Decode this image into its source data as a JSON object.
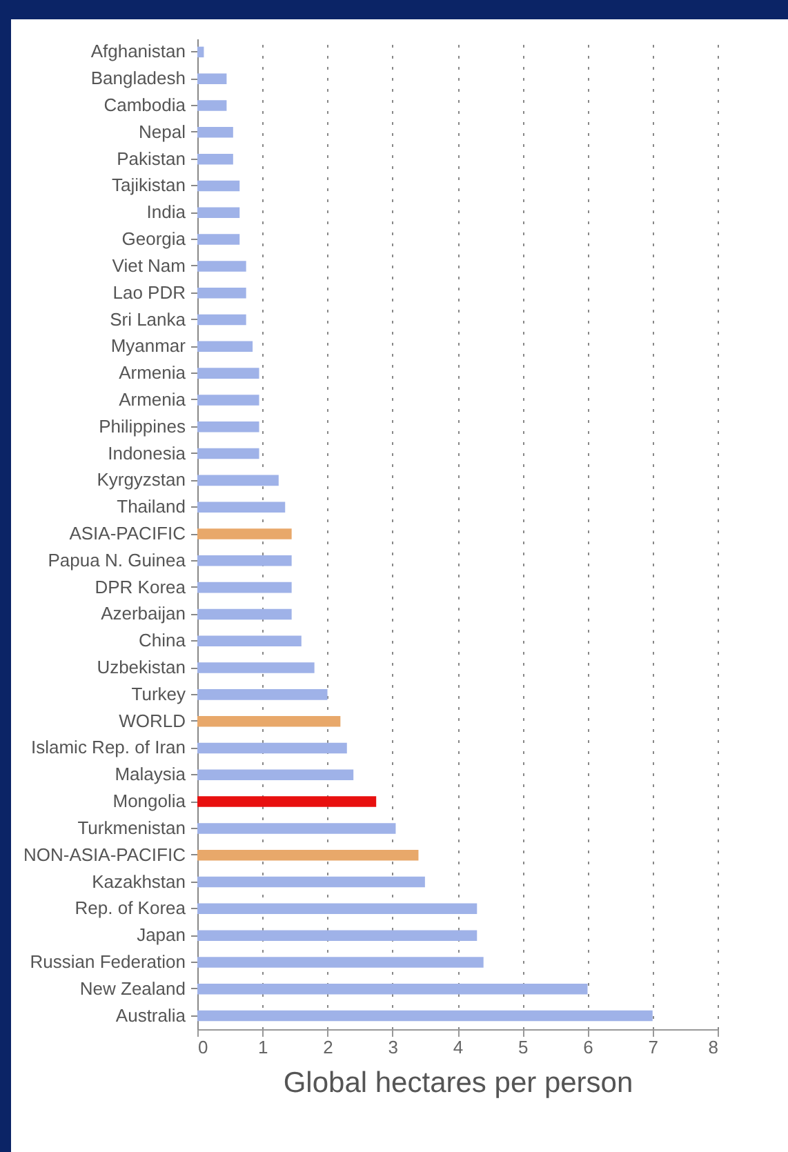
{
  "chart_data": {
    "type": "bar",
    "orientation": "horizontal",
    "xlabel": "Global hectares per person",
    "categories": [
      "Afghanistan",
      "Bangladesh",
      "Cambodia",
      "Nepal",
      "Pakistan",
      "Tajikistan",
      "India",
      "Georgia",
      "Viet Nam",
      "Lao PDR",
      "Sri Lanka",
      "Myanmar",
      "Armenia",
      "Armenia",
      "Philippines",
      "Indonesia",
      "Kyrgyzstan",
      "Thailand",
      "ASIA-PACIFIC",
      "Papua N. Guinea",
      "DPR Korea",
      "Azerbaijan",
      "China",
      "Uzbekistan",
      "Turkey",
      "WORLD",
      "Islamic Rep. of Iran",
      "Malaysia",
      "Mongolia",
      "Turkmenistan",
      "NON-ASIA-PACIFIC",
      "Kazakhstan",
      "Rep. of Korea",
      "Japan",
      "Russian Federation",
      "New Zealand",
      "Australia"
    ],
    "values": [
      0.1,
      0.45,
      0.45,
      0.55,
      0.55,
      0.65,
      0.65,
      0.65,
      0.75,
      0.75,
      0.75,
      0.85,
      0.95,
      0.95,
      0.95,
      0.95,
      1.25,
      1.35,
      1.45,
      1.45,
      1.45,
      1.45,
      1.6,
      1.8,
      2.0,
      2.2,
      2.3,
      2.4,
      2.75,
      3.05,
      3.4,
      3.5,
      4.3,
      4.3,
      4.4,
      6.0,
      7.0
    ],
    "colors": [
      "#9fb2e8",
      "#9fb2e8",
      "#9fb2e8",
      "#9fb2e8",
      "#9fb2e8",
      "#9fb2e8",
      "#9fb2e8",
      "#9fb2e8",
      "#9fb2e8",
      "#9fb2e8",
      "#9fb2e8",
      "#9fb2e8",
      "#9fb2e8",
      "#9fb2e8",
      "#9fb2e8",
      "#9fb2e8",
      "#9fb2e8",
      "#9fb2e8",
      "#e8a86a",
      "#9fb2e8",
      "#9fb2e8",
      "#9fb2e8",
      "#9fb2e8",
      "#9fb2e8",
      "#9fb2e8",
      "#e8a86a",
      "#9fb2e8",
      "#9fb2e8",
      "#e8100f",
      "#9fb2e8",
      "#e8a86a",
      "#9fb2e8",
      "#9fb2e8",
      "#9fb2e8",
      "#9fb2e8",
      "#9fb2e8",
      "#9fb2e8"
    ],
    "xlim": [
      0,
      8
    ],
    "xticks": [
      0,
      1,
      2,
      3,
      4,
      5,
      6,
      7,
      8
    ],
    "grid": "x"
  }
}
